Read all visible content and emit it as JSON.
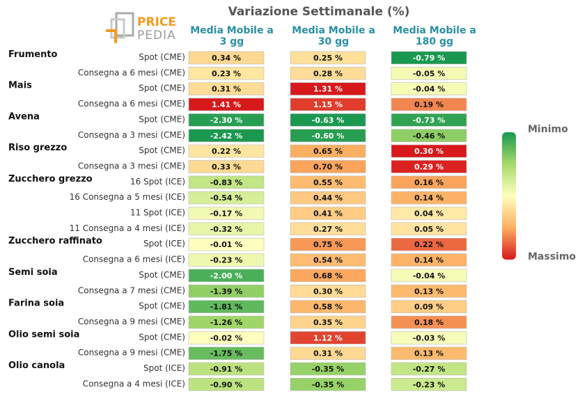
{
  "logo": {
    "line1": "PRICE",
    "line2": "PEDIA"
  },
  "colors": {
    "header": "#2a8fa6",
    "min": "#1a9850",
    "mid": "#ffffbf",
    "max": "#d7191c"
  },
  "chart_data": {
    "type": "heatmap",
    "title": "Variazione Settimanale (%)",
    "columns": [
      {
        "line1": "Media Mobile a",
        "line2": "3 gg"
      },
      {
        "line1": "Media Mobile a",
        "line2": "30 gg"
      },
      {
        "line1": "Media Mobile a",
        "line2": "180 gg"
      }
    ],
    "legend": {
      "min_label": "Minimo",
      "max_label": "Massimo"
    },
    "groups": [
      {
        "name": "Frumento",
        "rows": [
          {
            "label": "Spot (CME)",
            "values": [
              0.34,
              0.25,
              -0.79
            ]
          },
          {
            "label": "Consegna a 6 mesi (CME)",
            "values": [
              0.23,
              0.28,
              -0.05
            ]
          }
        ]
      },
      {
        "name": "Mais",
        "rows": [
          {
            "label": "Spot (CME)",
            "values": [
              0.31,
              1.31,
              -0.04
            ]
          },
          {
            "label": "Consegna a 6 mesi (CME)",
            "values": [
              1.41,
              1.15,
              0.19
            ]
          }
        ]
      },
      {
        "name": "Avena",
        "rows": [
          {
            "label": "Spot (CME)",
            "values": [
              -2.3,
              -0.63,
              -0.73
            ]
          },
          {
            "label": "Consegna a 3 mesi (CME)",
            "values": [
              -2.42,
              -0.6,
              -0.46
            ]
          }
        ]
      },
      {
        "name": "Riso grezzo",
        "rows": [
          {
            "label": "Spot (CME)",
            "values": [
              0.22,
              0.65,
              0.3
            ]
          },
          {
            "label": "Consegna a 3 mesi (CME)",
            "values": [
              0.33,
              0.7,
              0.29
            ]
          }
        ]
      },
      {
        "name": "Zucchero grezzo",
        "rows": [
          {
            "label": "16 Spot (ICE)",
            "values": [
              -0.83,
              0.55,
              0.16
            ]
          },
          {
            "label": "16 Consegna a 5 mesi (ICE)",
            "values": [
              -0.54,
              0.44,
              0.14
            ]
          },
          {
            "label": "11 Spot (ICE)",
            "values": [
              -0.17,
              0.41,
              0.04
            ]
          },
          {
            "label": "11 Consegna a 4 mesi (ICE)",
            "values": [
              -0.32,
              0.27,
              0.05
            ]
          }
        ]
      },
      {
        "name": "Zucchero raffinato",
        "rows": [
          {
            "label": "Spot (ICE)",
            "values": [
              -0.01,
              0.75,
              0.22
            ]
          },
          {
            "label": "Consegna a 6 mesi (ICE)",
            "values": [
              -0.23,
              0.54,
              0.14
            ]
          }
        ]
      },
      {
        "name": "Semi soia",
        "rows": [
          {
            "label": "Spot (CME)",
            "values": [
              -2.0,
              0.68,
              -0.04
            ]
          },
          {
            "label": "Consegna a 7 mesi (CME)",
            "values": [
              -1.39,
              0.3,
              0.13
            ]
          }
        ]
      },
      {
        "name": "Farina soia",
        "rows": [
          {
            "label": "Spot (CME)",
            "values": [
              -1.81,
              0.58,
              0.09
            ]
          },
          {
            "label": "Consegna a 9 mesi (CME)",
            "values": [
              -1.26,
              0.35,
              0.18
            ]
          }
        ]
      },
      {
        "name": "Olio semi soia",
        "rows": [
          {
            "label": "Spot (CME)",
            "values": [
              -0.02,
              1.12,
              -0.03
            ]
          },
          {
            "label": "Consegna a 9 mesi (CME)",
            "values": [
              -1.75,
              0.31,
              0.13
            ]
          }
        ]
      },
      {
        "name": "Olio canola",
        "rows": [
          {
            "label": "Spot (ICE)",
            "values": [
              -0.91,
              -0.35,
              -0.27
            ]
          },
          {
            "label": "Consegna a 4 mesi (ICE)",
            "values": [
              -0.9,
              -0.35,
              -0.23
            ]
          }
        ]
      }
    ]
  }
}
